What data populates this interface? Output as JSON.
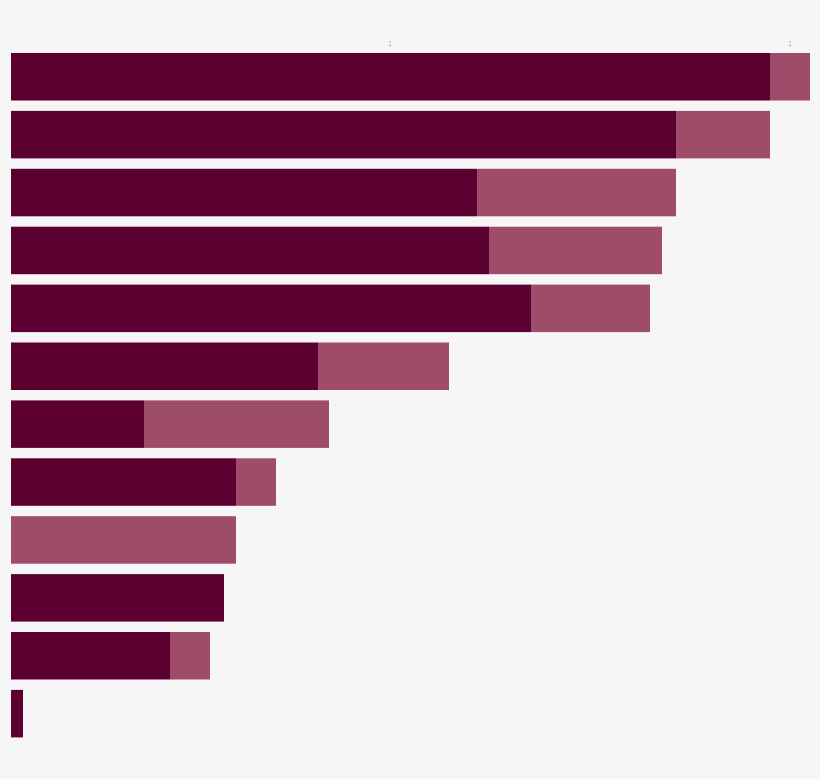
{
  "chart_data": {
    "type": "bar",
    "orientation": "horizontal",
    "stacked": true,
    "title": "",
    "xlabel": "",
    "ylabel": "",
    "xlim": [
      0,
      799
    ],
    "grid": false,
    "legend": "none",
    "tick_labels": [
      ":",
      ":"
    ],
    "tick_values": [
      379,
      779
    ],
    "categories": [
      "",
      "",
      "",
      "",
      "",
      "",
      "",
      "",
      "",
      "",
      "",
      ""
    ],
    "series": [
      {
        "color": "#5c0031",
        "values": [
          759,
          665,
          466,
          478,
          520,
          307,
          133,
          225,
          0,
          213,
          159,
          12
        ]
      },
      {
        "color": "#9e4c69",
        "values": [
          40,
          94,
          199,
          173,
          119,
          131,
          185,
          40,
          225,
          0,
          40,
          0
        ]
      }
    ]
  }
}
